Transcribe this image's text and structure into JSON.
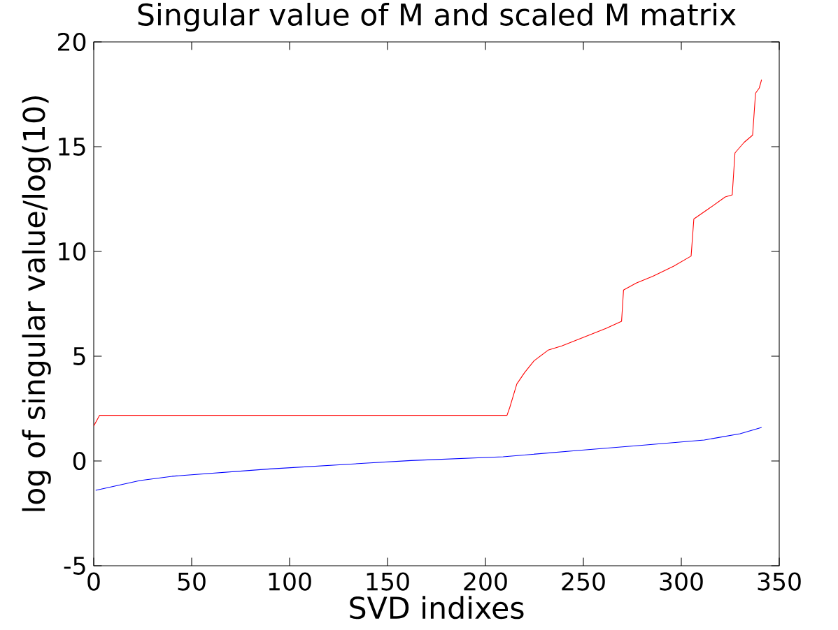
{
  "chart_data": {
    "type": "line",
    "title": "Singular value of M and scaled M matrix",
    "xlabel": "SVD indixes",
    "ylabel": "log of singular value/log(10)",
    "xlim": [
      0,
      350
    ],
    "ylim": [
      -5,
      20
    ],
    "xticks": [
      0,
      50,
      100,
      150,
      200,
      250,
      300,
      350
    ],
    "yticks": [
      -5,
      0,
      5,
      10,
      15,
      20
    ],
    "marker": "none",
    "line_style": "solid",
    "series": [
      {
        "color": "#ff0000",
        "x": [
          0,
          3,
          211,
          212.4,
          216,
          220,
          224.8,
          232,
          239,
          249.8,
          261.7,
          269.5,
          270.5,
          277,
          285.5,
          296,
          305,
          306.4,
          314,
          322.4,
          326,
          327.4,
          332,
          336.4,
          337.9,
          339.8,
          341
        ],
        "values": [
          1.67,
          2.18,
          2.18,
          2.55,
          3.67,
          4.22,
          4.78,
          5.29,
          5.49,
          5.89,
          6.33,
          6.67,
          8.16,
          8.49,
          8.82,
          9.29,
          9.78,
          11.55,
          12.04,
          12.6,
          12.7,
          14.7,
          15.2,
          15.55,
          17.55,
          17.8,
          18.2
        ]
      },
      {
        "color": "#0000ff",
        "x": [
          1,
          23.6,
          40,
          90,
          138,
          162,
          209,
          247,
          280,
          311.7,
          330,
          341
        ],
        "values": [
          -1.4,
          -0.93,
          -0.73,
          -0.38,
          -0.11,
          0.02,
          0.2,
          0.5,
          0.75,
          1.0,
          1.3,
          1.6
        ]
      }
    ]
  }
}
